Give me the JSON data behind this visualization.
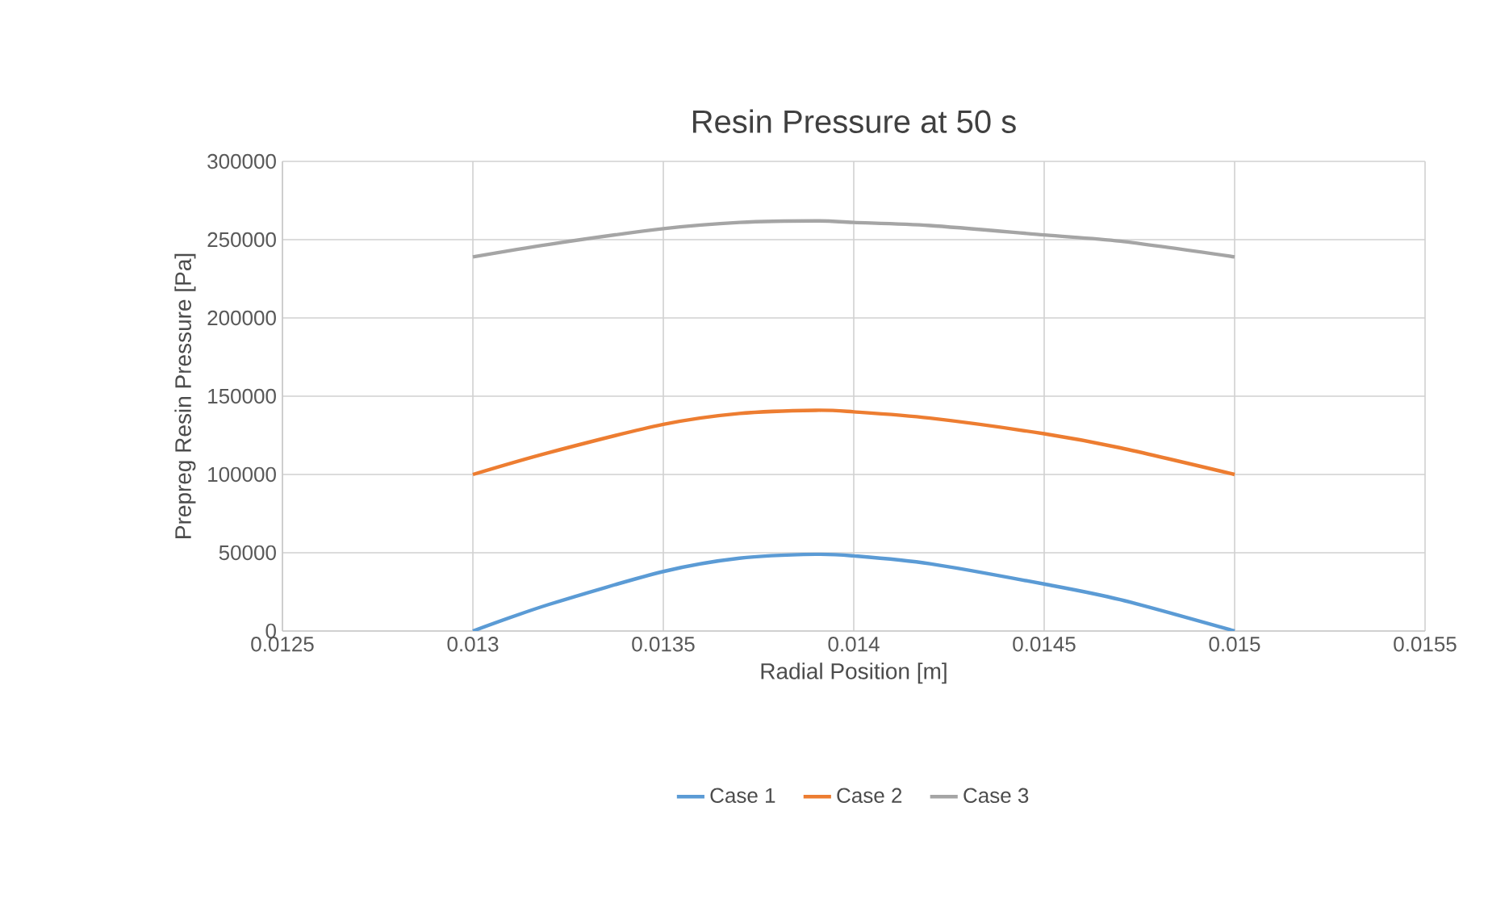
{
  "chart_data": {
    "type": "line",
    "title": "Resin Pressure at 50 s",
    "xlabel": "Radial Position [m]",
    "ylabel": "Prepreg Resin Pressure [Pa]",
    "x": [
      0.013,
      0.0132,
      0.0135,
      0.0137,
      0.0139,
      0.014,
      0.0142,
      0.0145,
      0.0147,
      0.015
    ],
    "series": [
      {
        "name": "Case 1",
        "color": "#5b9bd5",
        "values": [
          0,
          17000,
          38000,
          46500,
          49000,
          48000,
          43000,
          30000,
          20000,
          0
        ]
      },
      {
        "name": "Case 2",
        "color": "#ed7d31",
        "values": [
          100000,
          114000,
          132000,
          139000,
          141000,
          140000,
          136000,
          126000,
          117000,
          100000
        ]
      },
      {
        "name": "Case 3",
        "color": "#a5a5a5",
        "values": [
          239000,
          247000,
          257000,
          261000,
          262000,
          261000,
          259000,
          253000,
          249000,
          239000
        ]
      }
    ],
    "xlim": [
      0.0125,
      0.0155
    ],
    "xticks": [
      {
        "value": 0.0125,
        "label": "0.0125"
      },
      {
        "value": 0.013,
        "label": "0.013"
      },
      {
        "value": 0.0135,
        "label": "0.0135"
      },
      {
        "value": 0.014,
        "label": "0.014"
      },
      {
        "value": 0.0145,
        "label": "0.0145"
      },
      {
        "value": 0.015,
        "label": "0.015"
      },
      {
        "value": 0.0155,
        "label": "0.0155"
      }
    ],
    "ylim": [
      0,
      300000
    ],
    "yticks": [
      0,
      50000,
      100000,
      150000,
      200000,
      250000,
      300000
    ],
    "grid": true,
    "legend": "bottom",
    "marker": "none",
    "line_style": "solid"
  }
}
